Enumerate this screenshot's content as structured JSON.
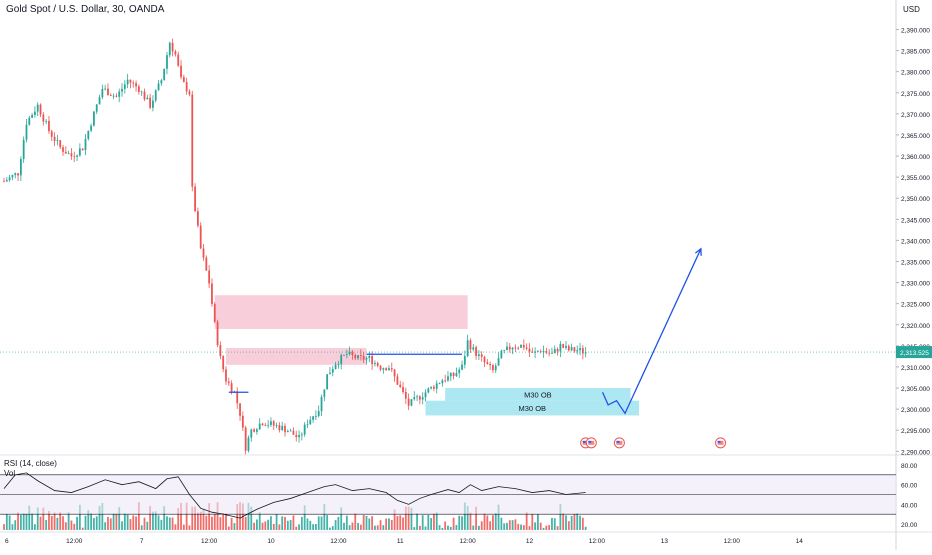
{
  "chart_data": {
    "type": "candlestick",
    "title": "Gold Spot / U.S. Dollar, 30, OANDA",
    "currency": "USD",
    "last_price": 2313.525,
    "last_price_label": "2,313.525",
    "y_axis": {
      "ylim": [
        2286,
        2294.5
      ],
      "range": [
        2286,
        2394
      ],
      "ticks": [
        2290,
        2295,
        2300,
        2305,
        2310,
        2315,
        2320,
        2325,
        2330,
        2335,
        2340,
        2345,
        2350,
        2355,
        2360,
        2365,
        2370,
        2375,
        2380,
        2385,
        2390
      ],
      "tick_labels": [
        "2,290.000",
        "2,295.000",
        "2,300.000",
        "2,305.000",
        "2,310.000",
        "2,315.000",
        "2,320.000",
        "2,325.000",
        "2,330.000",
        "2,335.000",
        "2,340.000",
        "2,345.000",
        "2,350.000",
        "2,355.000",
        "2,360.000",
        "2,365.000",
        "2,370.000",
        "2,375.000",
        "2,380.000",
        "2,385.000",
        "2,390.000"
      ]
    },
    "x_axis": {
      "labels": [
        {
          "text": "6",
          "bar": 1
        },
        {
          "text": "12:00",
          "bar": 25
        },
        {
          "text": "7",
          "bar": 49
        },
        {
          "text": "12:00",
          "bar": 73
        },
        {
          "text": "10",
          "bar": 95
        },
        {
          "text": "12:00",
          "bar": 119
        },
        {
          "text": "11",
          "bar": 141
        },
        {
          "text": "12:00",
          "bar": 165
        },
        {
          "text": "12",
          "bar": 187
        },
        {
          "text": "12:00",
          "bar": 211
        },
        {
          "text": "13",
          "bar": 235
        },
        {
          "text": "12:00",
          "bar": 259
        },
        {
          "text": "14",
          "bar": 283
        }
      ]
    },
    "price_path": [
      [
        0,
        2354
      ],
      [
        5,
        2356
      ],
      [
        8,
        2368
      ],
      [
        12,
        2372
      ],
      [
        16,
        2366
      ],
      [
        20,
        2362
      ],
      [
        24,
        2360
      ],
      [
        28,
        2362
      ],
      [
        31,
        2368
      ],
      [
        35,
        2376
      ],
      [
        40,
        2374
      ],
      [
        44,
        2378
      ],
      [
        48,
        2376
      ],
      [
        52,
        2372
      ],
      [
        56,
        2378
      ],
      [
        59,
        2387
      ],
      [
        61,
        2384
      ],
      [
        63,
        2378
      ],
      [
        66,
        2375
      ],
      [
        67,
        2352
      ],
      [
        70,
        2338
      ],
      [
        73,
        2330
      ],
      [
        75,
        2320
      ],
      [
        77,
        2312
      ],
      [
        79,
        2307
      ],
      [
        82,
        2304
      ],
      [
        84,
        2299
      ],
      [
        86,
        2291
      ],
      [
        88,
        2295
      ],
      [
        92,
        2297
      ],
      [
        97,
        2296
      ],
      [
        101,
        2295
      ],
      [
        105,
        2293
      ],
      [
        108,
        2297
      ],
      [
        112,
        2300
      ],
      [
        115,
        2308
      ],
      [
        118,
        2311
      ],
      [
        122,
        2313
      ],
      [
        126,
        2312
      ],
      [
        130,
        2312
      ],
      [
        134,
        2310
      ],
      [
        137,
        2310
      ],
      [
        141,
        2305
      ],
      [
        144,
        2301
      ],
      [
        148,
        2303
      ],
      [
        152,
        2305
      ],
      [
        156,
        2307
      ],
      [
        160,
        2308
      ],
      [
        163,
        2310
      ],
      [
        165,
        2316
      ],
      [
        167,
        2314
      ],
      [
        171,
        2311
      ],
      [
        174,
        2309
      ],
      [
        177,
        2313
      ],
      [
        181,
        2315
      ],
      [
        185,
        2315
      ],
      [
        188,
        2313
      ],
      [
        191,
        2314
      ],
      [
        195,
        2313
      ],
      [
        198,
        2315
      ],
      [
        201,
        2314
      ],
      [
        204,
        2314
      ],
      [
        207,
        2313.5
      ]
    ],
    "annotations": {
      "zones": [
        {
          "label": "",
          "color": "#f7c6d3",
          "x1_bar": 75,
          "x2_bar": 165,
          "y_top": 2327,
          "y_bottom": 2319
        },
        {
          "label": "",
          "color": "#f7c6d3",
          "x1_bar": 79,
          "x2_bar": 129,
          "y_top": 2314.5,
          "y_bottom": 2310.5
        },
        {
          "label": "M30 OB",
          "color": "#9fe3ee",
          "x1_bar": 157,
          "x2_bar": 223,
          "y_top": 2305,
          "y_bottom": 2302
        },
        {
          "label": "M30 OB",
          "color": "#9fe3ee",
          "x1_bar": 150,
          "x2_bar": 226,
          "y_top": 2302,
          "y_bottom": 2298.5
        }
      ],
      "lines": [
        {
          "color": "#1e53e5",
          "points": [
            [
              129,
              2313
            ],
            [
              163,
              2313
            ]
          ]
        },
        {
          "color": "#1e53e5",
          "points": [
            [
              80,
              2304
            ],
            [
              87,
              2304
            ]
          ]
        }
      ],
      "projection": {
        "color": "#1e53e5",
        "points": [
          [
            213,
            2304
          ],
          [
            215,
            2301
          ],
          [
            218,
            2302
          ],
          [
            221,
            2299
          ],
          [
            248,
            2338
          ]
        ]
      },
      "event_markers": [
        {
          "bar": 207,
          "y": 2292
        },
        {
          "bar": 209,
          "y": 2292
        },
        {
          "bar": 219,
          "y": 2292
        },
        {
          "bar": 255,
          "y": 2292
        }
      ]
    },
    "rsi": {
      "label": "RSI (14, close)",
      "ticks": [
        80,
        60,
        40,
        20
      ],
      "tick_labels": [
        "80.00",
        "60.00",
        "40.00",
        "20.00"
      ],
      "band": [
        30,
        70
      ],
      "path": [
        [
          0,
          56
        ],
        [
          4,
          70
        ],
        [
          8,
          72
        ],
        [
          12,
          64
        ],
        [
          18,
          54
        ],
        [
          24,
          52
        ],
        [
          30,
          58
        ],
        [
          36,
          65
        ],
        [
          42,
          60
        ],
        [
          48,
          63
        ],
        [
          54,
          56
        ],
        [
          58,
          66
        ],
        [
          62,
          68
        ],
        [
          66,
          50
        ],
        [
          70,
          36
        ],
        [
          74,
          32
        ],
        [
          78,
          30
        ],
        [
          84,
          26
        ],
        [
          90,
          35
        ],
        [
          96,
          42
        ],
        [
          102,
          46
        ],
        [
          108,
          52
        ],
        [
          114,
          58
        ],
        [
          118,
          60
        ],
        [
          124,
          54
        ],
        [
          130,
          56
        ],
        [
          136,
          52
        ],
        [
          140,
          44
        ],
        [
          144,
          40
        ],
        [
          148,
          46
        ],
        [
          152,
          50
        ],
        [
          158,
          55
        ],
        [
          162,
          52
        ],
        [
          166,
          60
        ],
        [
          170,
          54
        ],
        [
          176,
          58
        ],
        [
          182,
          56
        ],
        [
          188,
          52
        ],
        [
          194,
          54
        ],
        [
          200,
          50
        ],
        [
          207,
          52
        ]
      ]
    },
    "volume_label": "Vol"
  }
}
